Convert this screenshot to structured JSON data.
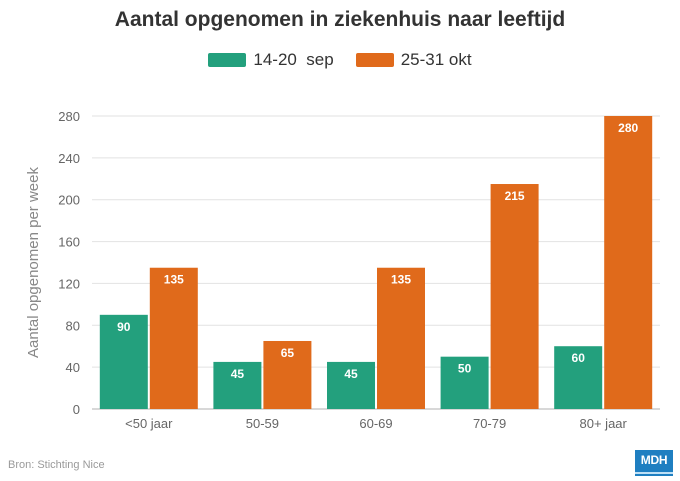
{
  "chart_data": {
    "type": "bar",
    "title": "Aantal opgenomen in ziekenhuis naar leeftijd",
    "ylabel": "Aantal opgenomen per week",
    "xlabel": "",
    "categories": [
      "<50 jaar",
      "50-59",
      "60-69",
      "70-79",
      "80+ jaar"
    ],
    "series": [
      {
        "name": "14-20  sep",
        "color": "#23a07d",
        "values": [
          90,
          45,
          45,
          50,
          60
        ]
      },
      {
        "name": "25-31 okt",
        "color": "#e06a1b",
        "values": [
          135,
          65,
          135,
          215,
          280
        ]
      }
    ],
    "ylim": [
      0,
      280
    ],
    "yticks": [
      0,
      40,
      80,
      120,
      160,
      200,
      240,
      280
    ],
    "grid": true,
    "legend": "top"
  },
  "source": "Bron: Stichting Nice",
  "logo": "MDH"
}
